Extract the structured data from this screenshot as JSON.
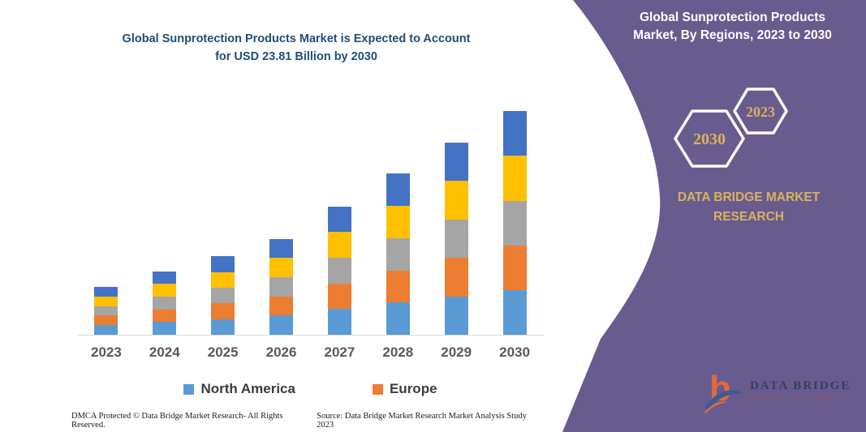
{
  "header": {
    "title_line1": "Global Sunprotection Products Market is Expected to Account",
    "title_line2": "for USD 23.81 Billion by 2030"
  },
  "right_panel": {
    "title_line1": "Global Sunprotection Products",
    "title_line2": "Market, By Regions, 2023 to 2030",
    "hexagons": [
      {
        "label": "2030"
      },
      {
        "label": "2023"
      }
    ],
    "brand_line1": "DATA BRIDGE MARKET",
    "brand_line2": "RESEARCH",
    "logo": {
      "line1": "DATA BRIDGE",
      "line2": "MARKET RESEARCH"
    }
  },
  "chart_data": {
    "type": "bar",
    "stacked": true,
    "title": "Global Sunprotection Products Market is Expected to Account for USD 23.81 Billion by 2030",
    "unit": "USD Billion",
    "categories": [
      "2023",
      "2024",
      "2025",
      "2026",
      "2027",
      "2028",
      "2029",
      "2030"
    ],
    "totals": [
      5.1,
      6.75,
      8.35,
      10.2,
      13.65,
      17.15,
      20.45,
      23.81
    ],
    "series": [
      {
        "name": "North America",
        "color": "#5B9BD5",
        "values": [
          1.02,
          1.35,
          1.67,
          2.04,
          2.73,
          3.43,
          4.09,
          4.76
        ]
      },
      {
        "name": "Europe",
        "color": "#ED7D31",
        "values": [
          1.02,
          1.35,
          1.67,
          2.04,
          2.73,
          3.43,
          4.09,
          4.76
        ]
      },
      {
        "name": "",
        "color": "#A5A5A5",
        "values": [
          1.02,
          1.35,
          1.67,
          2.04,
          2.73,
          3.43,
          4.09,
          4.76
        ]
      },
      {
        "name": "",
        "color": "#FFC000",
        "values": [
          1.02,
          1.35,
          1.67,
          2.04,
          2.73,
          3.43,
          4.09,
          4.76
        ]
      },
      {
        "name": "",
        "color": "#4472C4",
        "values": [
          1.02,
          1.35,
          1.67,
          2.04,
          2.73,
          3.43,
          4.09,
          4.77
        ]
      }
    ],
    "legend": [
      "North America",
      "Europe"
    ],
    "legend_position": "bottom",
    "grid": false,
    "y_axis_visible": false,
    "x_axis_color": "#D9D9D9"
  },
  "footer": {
    "left": "DMCA Protected © Data Bridge Market Research-  All Rights Reserved.",
    "right": "Source: Data Bridge Market Research  Market Analysis Study 2023"
  },
  "colors": {
    "purple": "#685C8F",
    "title-blue": "#1F4E79",
    "gold": "#D9B25F",
    "axis": "#D9D9D9",
    "xlabel": "#595959",
    "legend-text": "#3C3C3C"
  }
}
